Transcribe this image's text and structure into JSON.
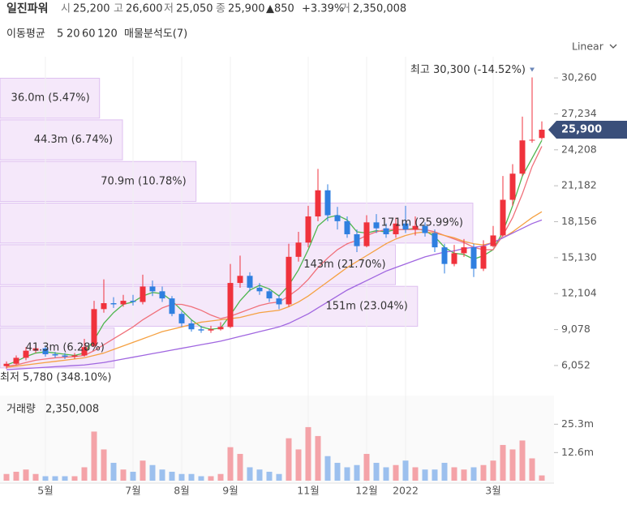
{
  "header": {
    "name": "일진파워",
    "items": [
      {
        "key": "시",
        "value": "25,200"
      },
      {
        "key": "고",
        "value": "26,600"
      },
      {
        "key": "저",
        "value": "25,050"
      },
      {
        "key": "종",
        "value": "25,900"
      }
    ],
    "change": "▲850",
    "change_pct": "+3.39%",
    "volume_key": "거",
    "volume": "2,350,008"
  },
  "legend": {
    "title": "이동평균",
    "profile": "매물분석도(7)"
  },
  "chart_data": [
    {
      "type": "candlestick",
      "scale": "Linear",
      "up_color": "#f0323c",
      "down_color": "#2f7fe0",
      "open": [
        6000,
        6200,
        6700,
        7300,
        7500,
        7000,
        6900,
        6800,
        6900,
        7700,
        10800,
        11300,
        11200,
        11500,
        11400,
        12700,
        12300,
        11700,
        10400,
        9600,
        9100,
        9000,
        9100,
        9300,
        13000,
        13600,
        12600,
        12300,
        11700,
        11200,
        15200,
        16400,
        18600,
        20800,
        18700,
        18200,
        17100,
        16100,
        18100,
        17600,
        17100,
        18000,
        17500,
        17800,
        17200,
        16000,
        14600,
        15500,
        16000,
        14200,
        16100,
        17000,
        20000,
        22200,
        25000,
        25200
      ],
      "high": [
        6400,
        6900,
        7600,
        7900,
        7700,
        7200,
        7100,
        7100,
        8300,
        11500,
        13300,
        11800,
        12000,
        12000,
        13700,
        13200,
        12700,
        11900,
        10600,
        9900,
        9400,
        9400,
        9700,
        14600,
        15300,
        13900,
        13000,
        12500,
        12000,
        16300,
        17300,
        19500,
        22600,
        21300,
        19400,
        18600,
        17500,
        18700,
        18800,
        18000,
        18500,
        19500,
        18600,
        18100,
        17500,
        16300,
        16200,
        16700,
        16300,
        16600,
        17800,
        22000,
        23000,
        27000,
        30300,
        26600
      ],
      "low": [
        5780,
        6100,
        6500,
        7100,
        6800,
        6700,
        6600,
        6600,
        6800,
        7600,
        10500,
        10900,
        11000,
        11100,
        11200,
        11900,
        11400,
        10200,
        9300,
        8900,
        8800,
        8800,
        9000,
        9200,
        12600,
        12300,
        12000,
        11400,
        10800,
        11000,
        14800,
        16000,
        18200,
        18200,
        17500,
        16800,
        15600,
        16000,
        17200,
        16800,
        16800,
        17200,
        17000,
        16900,
        15600,
        13800,
        14400,
        15200,
        13500,
        14000,
        16000,
        16900,
        19500,
        22000,
        24800,
        25050
      ],
      "close": [
        6200,
        6700,
        7300,
        7500,
        7000,
        6900,
        6800,
        6900,
        7600,
        10800,
        11300,
        11200,
        11500,
        11400,
        12700,
        12300,
        11700,
        10400,
        9600,
        9100,
        9000,
        9100,
        9300,
        13000,
        13600,
        12600,
        12300,
        11700,
        11200,
        15200,
        16400,
        18600,
        20800,
        18700,
        18200,
        17100,
        16100,
        18100,
        17600,
        17100,
        18000,
        17500,
        17800,
        17200,
        16000,
        14600,
        15500,
        16000,
        14200,
        16100,
        17000,
        20000,
        22200,
        25000,
        25050,
        25900
      ],
      "series": [
        {
          "name": "5",
          "color": "#4fb64f",
          "values": [
            6100,
            6400,
            6800,
            7100,
            7200,
            7100,
            7000,
            6900,
            7100,
            8200,
            9600,
            10500,
            11200,
            11400,
            11900,
            12200,
            12100,
            11500,
            10700,
            9900,
            9300,
            9100,
            9200,
            10300,
            11500,
            12400,
            12800,
            12500,
            11900,
            12800,
            14100,
            15800,
            17800,
            18500,
            18700,
            18300,
            17300,
            17200,
            17400,
            17300,
            17500,
            17500,
            17600,
            17400,
            16900,
            16000,
            15500,
            15400,
            15000,
            15300,
            15800,
            17300,
            19500,
            22000,
            23500,
            25000
          ]
        },
        {
          "name": "20",
          "color": "#f0707a",
          "values": [
            6000,
            6100,
            6300,
            6500,
            6600,
            6700,
            6750,
            6800,
            6900,
            7300,
            7800,
            8300,
            8800,
            9300,
            9900,
            10400,
            10900,
            11200,
            11200,
            11000,
            10700,
            10300,
            10000,
            10200,
            10500,
            10800,
            11100,
            11300,
            11400,
            11900,
            12500,
            13300,
            14300,
            15100,
            15800,
            16300,
            16600,
            17000,
            17300,
            17500,
            17500,
            17500,
            17500,
            17500,
            17300,
            17000,
            16700,
            16400,
            16000,
            15800,
            15800,
            17000,
            18500,
            20500,
            22800,
            24500
          ]
        },
        {
          "name": "60",
          "color": "#f5a142",
          "values": [
            5900,
            6000,
            6100,
            6200,
            6300,
            6400,
            6500,
            6600,
            6700,
            6900,
            7100,
            7400,
            7700,
            8000,
            8300,
            8600,
            8900,
            9100,
            9300,
            9500,
            9700,
            9800,
            9900,
            10000,
            10100,
            10300,
            10500,
            10600,
            10700,
            11000,
            11400,
            11900,
            12500,
            13100,
            13700,
            14300,
            14800,
            15300,
            15800,
            16300,
            16700,
            17000,
            17200,
            17300,
            17200,
            17000,
            16800,
            16500,
            16300,
            16200,
            16400,
            16800,
            17300,
            17900,
            18500,
            19000
          ]
        },
        {
          "name": "120",
          "color": "#a066e0",
          "values": [
            5700,
            5750,
            5800,
            5850,
            5900,
            5950,
            6000,
            6050,
            6100,
            6200,
            6300,
            6450,
            6600,
            6750,
            6900,
            7050,
            7200,
            7350,
            7500,
            7650,
            7800,
            7950,
            8100,
            8300,
            8500,
            8700,
            8900,
            9100,
            9300,
            9600,
            10000,
            10400,
            10900,
            11400,
            11900,
            12400,
            12800,
            13200,
            13600,
            14000,
            14300,
            14600,
            14900,
            15200,
            15400,
            15600,
            15700,
            15900,
            16000,
            16100,
            16400,
            16800,
            17200,
            17600,
            18000,
            18300
          ]
        }
      ],
      "ylim": [
        4750,
        31700
      ],
      "yticks": [
        {
          "value": 30260,
          "label": "30,260"
        },
        {
          "value": 27234,
          "label": "27,234"
        },
        {
          "value": 24208,
          "label": "24,208"
        },
        {
          "value": 21182,
          "label": "21,182"
        },
        {
          "value": 18156,
          "label": "18,156"
        },
        {
          "value": 15130,
          "label": "15,130"
        },
        {
          "value": 12104,
          "label": "12,104"
        },
        {
          "value": 9078,
          "label": "9,078"
        },
        {
          "value": 6052,
          "label": "6,052"
        }
      ],
      "price_tag": {
        "value": 25900,
        "label": "25,900"
      },
      "annotations": [
        {
          "text": "최고 30,300 (-14.52%)",
          "value": 30300,
          "index": 54
        },
        {
          "text": "최저 5,780 (348.10%)",
          "value": 5780,
          "index": 0
        }
      ],
      "volume_profile": {
        "values": [
          36.0,
          44.3,
          70.9,
          171,
          143,
          151,
          41.3
        ],
        "shares": [
          5.47,
          6.74,
          10.78,
          25.99,
          21.7,
          23.04,
          6.28
        ],
        "value_labels": [
          "36.0m (5.47%)",
          "44.3m (6.74%)",
          "70.9m (10.78%)",
          "171m (25.99%)",
          "143m (21.70%)",
          "151m (23.04%)",
          "41.3m (6.28%)"
        ]
      }
    },
    {
      "type": "bar",
      "title": "거래량",
      "title_value": "2,350,008",
      "up_color": "#f4a3a8",
      "down_color": "#9cc0ee",
      "categories": [
        null,
        null,
        null,
        null,
        "5월",
        null,
        null,
        null,
        null,
        null,
        null,
        null,
        null,
        "7월",
        null,
        null,
        null,
        null,
        "8월",
        null,
        null,
        null,
        null,
        "9월",
        null,
        null,
        null,
        null,
        null,
        null,
        null,
        "11월",
        null,
        null,
        null,
        null,
        null,
        "12월",
        null,
        null,
        null,
        "2022",
        null,
        null,
        null,
        null,
        null,
        null,
        null,
        null,
        "3월",
        null,
        null,
        null,
        null,
        null
      ],
      "values": [
        3,
        4,
        5,
        3,
        2,
        2,
        2,
        2,
        6,
        22,
        14,
        8,
        5,
        4,
        9,
        7,
        5,
        4,
        3,
        3,
        2,
        2,
        3,
        15,
        12,
        6,
        5,
        4,
        3,
        19,
        14,
        24,
        20,
        11,
        8,
        6,
        7,
        12,
        8,
        6,
        7,
        9,
        6,
        5,
        5,
        8,
        6,
        5,
        6,
        7,
        9,
        16,
        14,
        18,
        10,
        2.35
      ],
      "ylim": [
        0,
        37.4
      ],
      "yticks": [
        {
          "value": 25.3,
          "label": "25.3m"
        },
        {
          "value": 12.6,
          "label": "12.6m"
        }
      ]
    }
  ]
}
